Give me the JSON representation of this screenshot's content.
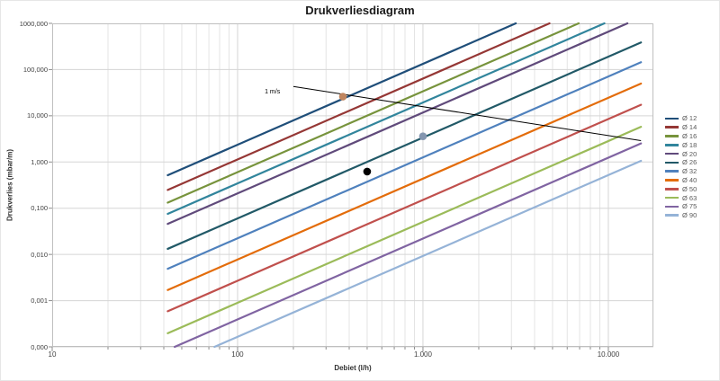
{
  "chart_data": {
    "type": "line",
    "title": "Drukverliesdiagram",
    "xlabel": "Debiet (l/h)",
    "ylabel": "Drukverlies (mbar/m)",
    "x_scale": "log",
    "y_scale": "log",
    "xlim": [
      10,
      17500
    ],
    "ylim": [
      0.0001,
      1000
    ],
    "grid": "major horizontal, major+minor vertical",
    "legend_position": "right",
    "x_ticks": [
      {
        "value": 10,
        "label": "10"
      },
      {
        "value": 100,
        "label": "100"
      },
      {
        "value": 1000,
        "label": "1.000"
      },
      {
        "value": 10000,
        "label": "10.000"
      }
    ],
    "y_ticks": [
      {
        "value": 1000,
        "label": "1000,000"
      },
      {
        "value": 100,
        "label": "100,000"
      },
      {
        "value": 10,
        "label": "10,000"
      },
      {
        "value": 1,
        "label": "1,000"
      },
      {
        "value": 0.1,
        "label": "0,100"
      },
      {
        "value": 0.01,
        "label": "0,010"
      },
      {
        "value": 0.001,
        "label": "0,001"
      },
      {
        "value": 0.0001,
        "label": "0,000"
      }
    ],
    "series": [
      {
        "label": "Ø 12",
        "color": "#1F4E79",
        "points": [
          [
            42,
            0.518
          ],
          [
            3166,
            1000
          ]
        ]
      },
      {
        "label": "Ø 14",
        "color": "#953735",
        "points": [
          [
            42,
            0.249
          ],
          [
            4813,
            1000
          ]
        ]
      },
      {
        "label": "Ø 16",
        "color": "#77933C",
        "points": [
          [
            42,
            0.132
          ],
          [
            6914,
            1000
          ]
        ]
      },
      {
        "label": "Ø 18",
        "color": "#31859C",
        "points": [
          [
            42,
            0.0755
          ],
          [
            9519,
            1000
          ]
        ]
      },
      {
        "label": "Ø 20",
        "color": "#604A7B",
        "points": [
          [
            42,
            0.0458
          ],
          [
            12670,
            1000
          ]
        ]
      },
      {
        "label": "Ø 26",
        "color": "#215967",
        "points": [
          [
            42,
            0.0132
          ],
          [
            15000,
            386
          ]
        ]
      },
      {
        "label": "Ø 32",
        "color": "#4F81BD",
        "points": [
          [
            42,
            0.0049
          ],
          [
            15000,
            144
          ]
        ]
      },
      {
        "label": "Ø 40",
        "color": "#E36C0A",
        "points": [
          [
            42,
            0.0017
          ],
          [
            15000,
            49.9
          ]
        ]
      },
      {
        "label": "Ø 50",
        "color": "#C0504D",
        "points": [
          [
            42,
            0.00059
          ],
          [
            15000,
            17.3
          ]
        ]
      },
      {
        "label": "Ø 63",
        "color": "#9BBB59",
        "points": [
          [
            42,
            0.000197
          ],
          [
            15000,
            5.77
          ]
        ]
      },
      {
        "label": "Ø 75",
        "color": "#8064A2",
        "points": [
          [
            45.8,
            0.0001
          ],
          [
            15000,
            2.52
          ]
        ]
      },
      {
        "label": "Ø 90",
        "color": "#95B3D7",
        "points": [
          [
            75.1,
            0.0001
          ],
          [
            15000,
            1.06
          ]
        ]
      }
    ],
    "reference_line": {
      "label": "1 m/s",
      "color": "#000000",
      "points": [
        [
          200,
          43
        ],
        [
          15000,
          2.9
        ]
      ],
      "label_at": [
        140,
        25
      ]
    },
    "markers": [
      {
        "name": "marker-tan-dot",
        "color": "#C0855E",
        "x": 370,
        "y": 26
      },
      {
        "name": "marker-slate-dot",
        "color": "#8496B0",
        "x": 1000,
        "y": 3.6
      },
      {
        "name": "marker-black-dot",
        "color": "#000000",
        "x": 500,
        "y": 0.62
      }
    ]
  }
}
